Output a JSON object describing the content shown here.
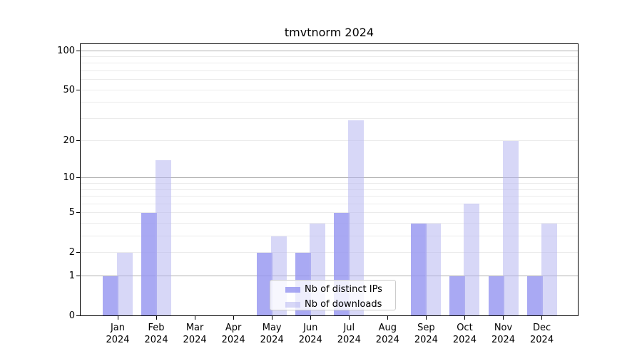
{
  "title": "tmvtnorm 2024",
  "chart_data": {
    "type": "bar",
    "categories": [
      "Jan 2024",
      "Feb 2024",
      "Mar 2024",
      "Apr 2024",
      "May 2024",
      "Jun 2024",
      "Jul 2024",
      "Aug 2024",
      "Sep 2024",
      "Oct 2024",
      "Nov 2024",
      "Dec 2024"
    ],
    "series": [
      {
        "name": "Nb of distinct IPs",
        "color": "#9696f0",
        "values": [
          1,
          5,
          0,
          0,
          2,
          2,
          5,
          0,
          4,
          1,
          1,
          1
        ]
      },
      {
        "name": "Nb of downloads",
        "color": "#b4b4f0",
        "values": [
          2,
          14,
          0,
          0,
          3,
          4,
          29,
          0,
          4,
          6,
          20,
          4
        ]
      }
    ],
    "yscale": "log1p",
    "ylim": [
      0,
      112
    ],
    "yticks": [
      0,
      1,
      2,
      5,
      10,
      20,
      50,
      100
    ],
    "major_gridlines": [
      1,
      10,
      100
    ],
    "minor_gridlines": [
      2,
      3,
      4,
      5,
      6,
      7,
      8,
      9,
      20,
      30,
      40,
      50,
      60,
      70,
      80,
      90
    ],
    "grid": true,
    "legend_position": "lower center"
  },
  "colors": {
    "grid_major": "#b0b0b0",
    "grid_minor": "#ebebeb",
    "axis": "#000000",
    "legend_border": "#cccccc"
  }
}
